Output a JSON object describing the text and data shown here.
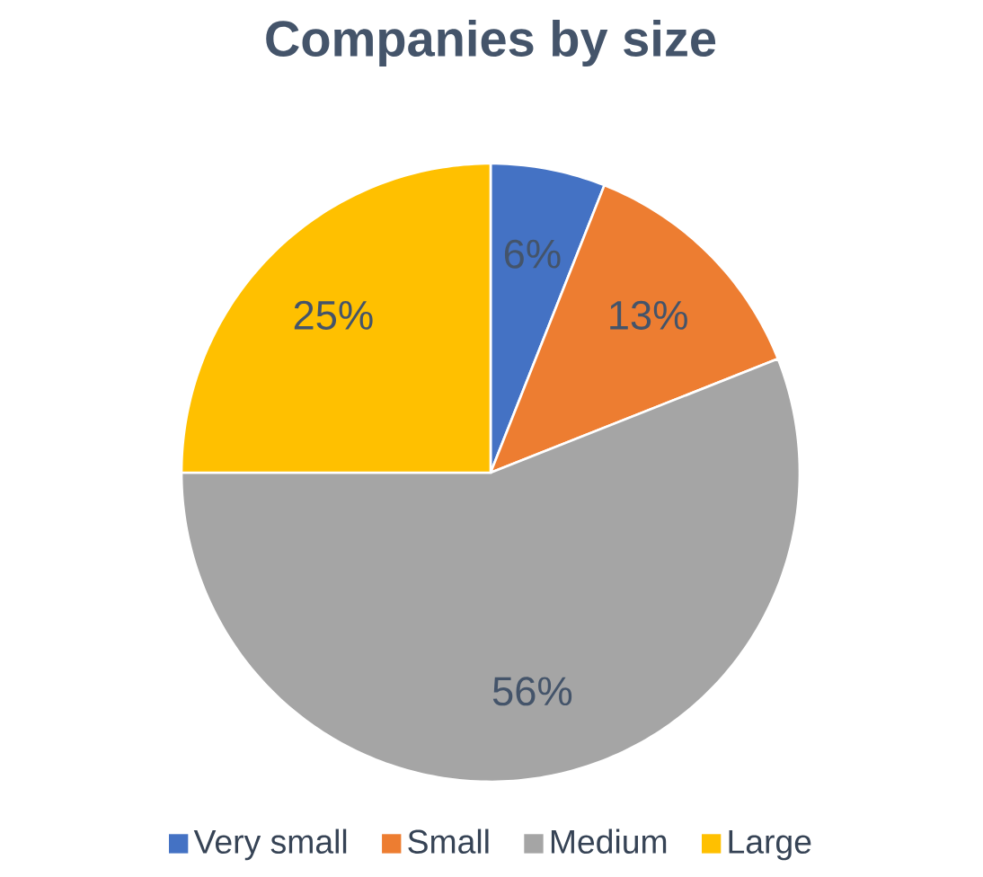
{
  "chart_data": {
    "type": "pie",
    "title": "Companies by size",
    "categories": [
      "Very small",
      "Small",
      "Medium",
      "Large"
    ],
    "values": [
      6,
      13,
      56,
      25
    ],
    "colors": [
      "#4472c4",
      "#ed7d31",
      "#a5a5a5",
      "#ffc000"
    ],
    "value_labels": [
      "6%",
      "13%",
      "56%",
      "25%"
    ],
    "legend": "bottom"
  }
}
